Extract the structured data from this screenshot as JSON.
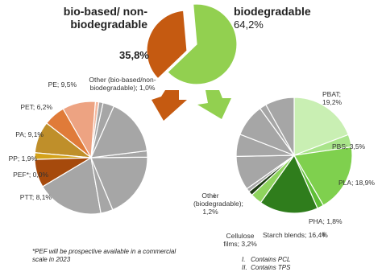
{
  "chart_data": [
    {
      "type": "pie",
      "categories": [
        "bio-based/ non-biodegradable",
        "biodegradable"
      ],
      "values": [
        35.8,
        64.2
      ],
      "value_labels": [
        "35,8%",
        "64,2%"
      ],
      "colors": [
        "#c55a11",
        "#92d050"
      ],
      "clockwise": false
    },
    {
      "type": "pie",
      "values": [
        1.0,
        9.5,
        6.2,
        9.1,
        1.9,
        0.0,
        8.1
      ],
      "value_labels": [
        "Other (bio-based/non-biodegradable); 1,0%",
        "PE; 9,5%",
        "PET; 6,2%",
        "PA; 9,1%",
        "PP; 1,9%",
        "PEF*; 0,0%",
        "PTT; 8,1%"
      ],
      "colors": [
        "#f4b9a0",
        "#eda382",
        "#e07b39",
        "#bf8f2a",
        "#d4a21a",
        "#b86a10",
        "#a64a0c"
      ],
      "clockwise": false,
      "other_color": "#a6a6a6"
    },
    {
      "type": "pie",
      "values": [
        19.2,
        3.5,
        18.9,
        1.8,
        16.4,
        3.2,
        1.2
      ],
      "value_labels": [
        "PBAT; 19,2%",
        "PBS; 3,5%",
        "PLA; 18,9%",
        "PHA; 1,8%",
        "Starch blends; 16,4%",
        "Cellulose films; 3,2%",
        "Other (biodegradable); 1,2%"
      ],
      "colors": [
        "#c9efb3",
        "#a9e48a",
        "#7fd04e",
        "#5fbf37",
        "#2f7d1c",
        "#8fd45e",
        "#1d3a12"
      ],
      "clockwise": true,
      "other_color": "#a6a6a6"
    }
  ],
  "markers": [
    "i",
    "ii"
  ],
  "notes": [
    "*PEF will be prospective available in a commercial scale in 2023"
  ],
  "footnotes": [
    {
      "num": "I.",
      "text": "Contains PCL"
    },
    {
      "num": "II.",
      "text": "Contains TPS"
    }
  ]
}
